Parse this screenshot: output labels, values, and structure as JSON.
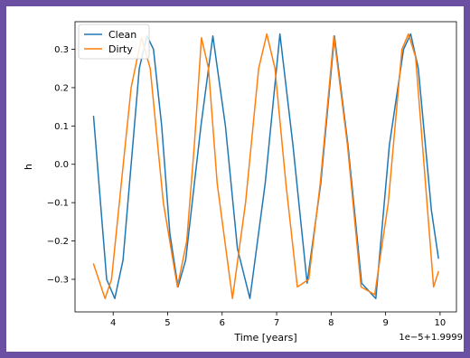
{
  "frame_color": "#6a4fa3",
  "chart_data": {
    "type": "line",
    "title": "",
    "xlabel": "Time [years]",
    "ylabel": "h",
    "x_offset_label": "1e−5+1.9999",
    "xlim": [
      3.3,
      10.3
    ],
    "ylim": [
      -0.385,
      0.372
    ],
    "x_ticks": [
      4,
      5,
      6,
      7,
      8,
      9,
      10
    ],
    "y_ticks": [
      -0.3,
      -0.2,
      -0.1,
      0.0,
      0.1,
      0.2,
      0.3
    ],
    "x_tick_labels": [
      "4",
      "5",
      "6",
      "7",
      "8",
      "9",
      "10"
    ],
    "y_tick_labels": [
      "−0.3",
      "−0.2",
      "−0.1",
      "0.0",
      "0.1",
      "0.2",
      "0.3"
    ],
    "grid": false,
    "legend_position": "top-left",
    "series": [
      {
        "name": "Clean",
        "color": "#1f77b4",
        "x": [
          3.64,
          3.88,
          4.03,
          4.18,
          4.48,
          4.62,
          4.74,
          4.89,
          5.04,
          5.19,
          5.33,
          5.61,
          5.83,
          6.06,
          6.28,
          6.51,
          6.79,
          7.06,
          7.3,
          7.56,
          7.81,
          8.06,
          8.31,
          8.56,
          8.82,
          9.07,
          9.33,
          9.46,
          9.6,
          9.84,
          9.97
        ],
        "y": [
          0.125,
          -0.3,
          -0.35,
          -0.25,
          0.25,
          0.335,
          0.3,
          0.1,
          -0.18,
          -0.32,
          -0.25,
          0.1,
          0.335,
          0.1,
          -0.22,
          -0.35,
          -0.05,
          0.34,
          0.05,
          -0.31,
          -0.05,
          0.335,
          0.05,
          -0.31,
          -0.35,
          0.05,
          0.3,
          0.34,
          0.25,
          -0.12,
          -0.245
        ]
      },
      {
        "name": "Dirty",
        "color": "#ff7f0e",
        "x": [
          3.64,
          3.85,
          3.97,
          4.15,
          4.33,
          4.52,
          4.68,
          4.92,
          5.18,
          5.35,
          5.49,
          5.62,
          5.75,
          5.91,
          6.19,
          6.43,
          6.67,
          6.82,
          6.97,
          7.17,
          7.38,
          7.59,
          7.8,
          8.05,
          8.3,
          8.55,
          8.8,
          9.05,
          9.3,
          9.42,
          9.55,
          9.88,
          9.97
        ],
        "y": [
          -0.26,
          -0.35,
          -0.3,
          -0.05,
          0.2,
          0.33,
          0.25,
          -0.1,
          -0.32,
          -0.2,
          0.05,
          0.33,
          0.25,
          -0.05,
          -0.35,
          -0.1,
          0.25,
          0.34,
          0.25,
          -0.05,
          -0.32,
          -0.3,
          -0.05,
          0.335,
          0.05,
          -0.32,
          -0.34,
          -0.1,
          0.3,
          0.34,
          0.28,
          -0.32,
          -0.28
        ]
      }
    ]
  }
}
